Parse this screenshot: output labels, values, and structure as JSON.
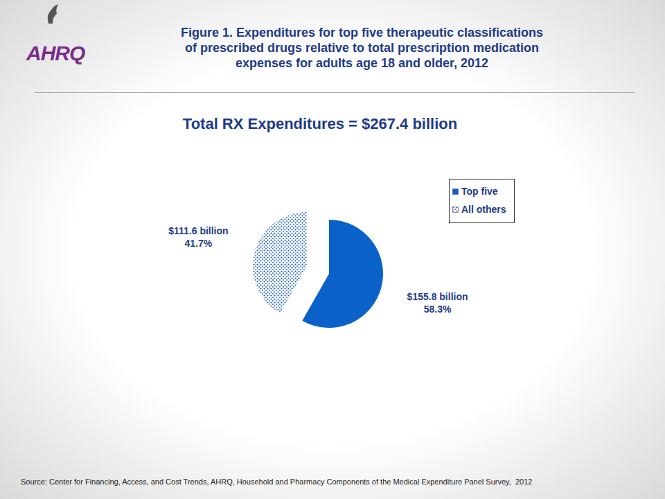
{
  "chart_data": {
    "type": "pie",
    "title": "Figure 1. Expenditures for top five therapeutic classifications\nof prescribed drugs relative to total prescription medication\nexpenses for adults age 18 and older, 2012",
    "subtitle": "Total RX Expenditures = $267.4 billion",
    "categories": [
      "Top five",
      "All others"
    ],
    "values": [
      155.8,
      111.6
    ],
    "value_labels": [
      "$155.8 billion",
      "$111.6 billion"
    ],
    "percent_labels": [
      "58.3%",
      "41.7%"
    ],
    "colors": [
      "#0a62c8",
      "#1a5cb8"
    ],
    "legend": "upper right",
    "data_labels": true,
    "source": "Source: Center for Financing, Access, and Cost Trends, AHRQ, Household and Pharmacy Components of the Medical Expenditure Panel Survey,  2012",
    "logo": "AHRQ"
  }
}
